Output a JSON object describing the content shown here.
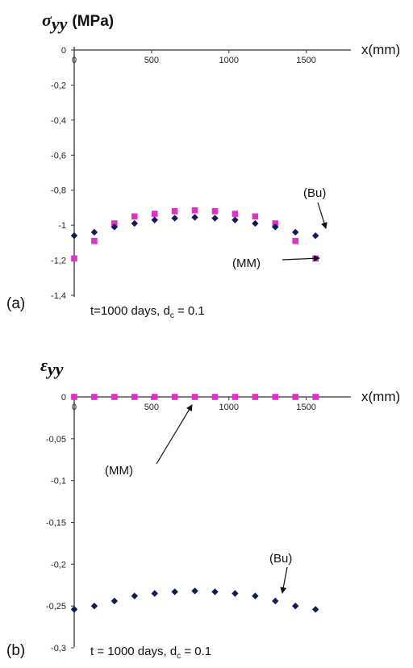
{
  "colors": {
    "series_bu": "#101a55",
    "series_mm": "#e030c8",
    "axis": "#333333"
  },
  "chart_data": [
    {
      "type": "scatter",
      "panel_label": "(a)",
      "title_symbol": "σ",
      "title_subscript": "yy",
      "title_unit": "(MPa)",
      "xlabel": "x(mm)",
      "ylabel": "",
      "xlim": [
        0,
        1700
      ],
      "ylim": [
        -1.4,
        0
      ],
      "x_ticks": [
        0,
        500,
        1000,
        1500
      ],
      "x_tick_labels": [
        "0",
        "500",
        "1000",
        "1500"
      ],
      "y_ticks": [
        0,
        -0.2,
        -0.4,
        -0.6,
        -0.8,
        -1,
        -1.2,
        -1.4
      ],
      "y_tick_labels": [
        "0",
        "-0,2",
        "-0,4",
        "-0,6",
        "-0,8",
        "-1",
        "-1,2",
        "-1,4"
      ],
      "x_axis_at_top": true,
      "grid": false,
      "legend": "none",
      "condition_text": "t=1000 days, d",
      "condition_sub": "c",
      "condition_value": " = 0.1",
      "annotations": [
        {
          "text": "(Bu)",
          "series": "Bu"
        },
        {
          "text": "(MM)",
          "series": "MM"
        }
      ],
      "series": [
        {
          "name": "Bu",
          "marker": "diamond",
          "x": [
            0,
            130,
            260,
            390,
            520,
            650,
            780,
            910,
            1040,
            1170,
            1300,
            1430,
            1560
          ],
          "y": [
            -1.06,
            -1.04,
            -1.01,
            -0.99,
            -0.97,
            -0.96,
            -0.955,
            -0.96,
            -0.97,
            -0.99,
            -1.01,
            -1.04,
            -1.06
          ]
        },
        {
          "name": "MM",
          "marker": "square",
          "x": [
            0,
            130,
            260,
            390,
            520,
            650,
            780,
            910,
            1040,
            1170,
            1300,
            1430,
            1560
          ],
          "y": [
            -1.19,
            -1.09,
            -0.99,
            -0.95,
            -0.935,
            -0.92,
            -0.915,
            -0.92,
            -0.935,
            -0.95,
            -0.99,
            -1.09,
            -1.19
          ]
        }
      ]
    },
    {
      "type": "scatter",
      "panel_label": "(b)",
      "title_symbol": "ε",
      "title_subscript": "yy",
      "title_unit": "",
      "xlabel": "x(mm)",
      "ylabel": "",
      "xlim": [
        0,
        1700
      ],
      "ylim": [
        -0.3,
        0
      ],
      "x_ticks": [
        0,
        500,
        1000,
        1500
      ],
      "x_tick_labels": [
        "0",
        "500",
        "1000",
        "1500"
      ],
      "y_ticks": [
        0,
        -0.05,
        -0.1,
        -0.15,
        -0.2,
        -0.25,
        -0.3
      ],
      "y_tick_labels": [
        "0",
        "-0,05",
        "-0,1",
        "-0,15",
        "-0,2",
        "-0,25",
        "-0,3"
      ],
      "x_axis_at_top": true,
      "grid": false,
      "legend": "none",
      "condition_text": "t = 1000 days,  d",
      "condition_sub": "c",
      "condition_value": " = 0.1",
      "annotations": [
        {
          "text": "(MM)",
          "series": "MM"
        },
        {
          "text": "(Bu)",
          "series": "Bu"
        }
      ],
      "series": [
        {
          "name": "Bu",
          "marker": "diamond",
          "x": [
            0,
            130,
            260,
            390,
            520,
            650,
            780,
            910,
            1040,
            1170,
            1300,
            1430,
            1560
          ],
          "y": [
            -0.254,
            -0.25,
            -0.244,
            -0.238,
            -0.235,
            -0.233,
            -0.232,
            -0.233,
            -0.235,
            -0.238,
            -0.244,
            -0.25,
            -0.254
          ]
        },
        {
          "name": "MM",
          "marker": "square",
          "x": [
            0,
            130,
            260,
            390,
            520,
            650,
            780,
            910,
            1040,
            1170,
            1300,
            1430,
            1560
          ],
          "y": [
            0,
            0,
            0,
            0,
            0,
            0,
            0,
            0,
            0,
            0,
            0,
            0,
            0
          ]
        }
      ]
    }
  ]
}
